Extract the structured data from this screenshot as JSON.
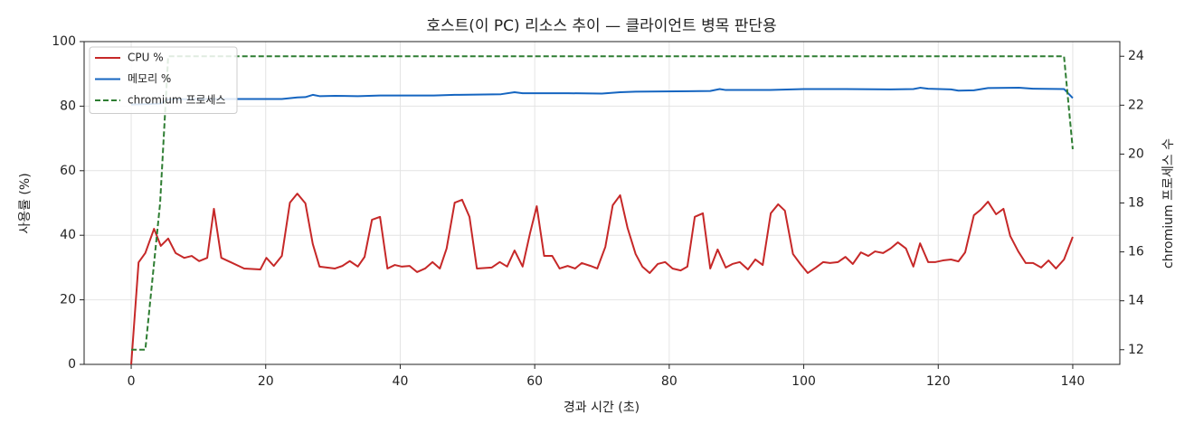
{
  "chart_data": {
    "type": "line",
    "title": "호스트(이 PC) 리소스 추이 — 클라이언트 병목 판단용",
    "xlabel": "경과 시간 (초)",
    "ylabel": "사용률 (%)",
    "y2label": "chromium 프로세스 수",
    "xlim": [
      -7,
      147
    ],
    "xticks": [
      0,
      20,
      40,
      60,
      80,
      100,
      120,
      140
    ],
    "ylim": [
      0,
      100
    ],
    "yticks": [
      0,
      20,
      40,
      60,
      80,
      100
    ],
    "y2lim": [
      11.4,
      24.6
    ],
    "y2ticks": [
      12,
      14,
      16,
      18,
      20,
      22,
      24
    ],
    "grid": true,
    "legend": "upper left",
    "series": [
      {
        "name": "CPU %",
        "color": "#c62828",
        "dashed": false,
        "x": [
          0,
          1.1,
          2.1,
          3.4,
          4.4,
          5.5,
          6.6,
          7.9,
          9.0,
          10.1,
          11.3,
          12.3,
          13.4,
          16.8,
          19.2,
          20.1,
          21.2,
          22.4,
          23.6,
          24.7,
          25.9,
          27,
          28,
          30.3,
          31.4,
          32.5,
          33.7,
          34.7,
          35.8,
          37,
          38.1,
          39.2,
          40.2,
          41.4,
          42.5,
          43.7,
          44.8,
          45.9,
          46.9,
          48.1,
          49.2,
          50.3,
          51.4,
          53.6,
          54.8,
          55.9,
          57,
          58.2,
          59.3,
          60.3,
          61.4,
          62.6,
          63.7,
          64.9,
          66,
          67,
          68.3,
          69.3,
          70.5,
          71.6,
          72.7,
          73.8,
          75,
          76,
          77.1,
          78.3,
          79.4,
          80.5,
          81.7,
          82.7,
          83.8,
          85,
          86.1,
          87.2,
          88.4,
          89.4,
          90.5,
          91.7,
          92.8,
          93.9,
          95.1,
          96.2,
          97.2,
          98.4,
          99.5,
          100.6,
          101.8,
          102.9,
          103.9,
          105.1,
          106.2,
          107.3,
          108.5,
          109.6,
          110.6,
          111.8,
          112.9,
          114,
          115.2,
          116.3,
          117.3,
          118.5,
          119.6,
          120.7,
          121.9,
          123,
          124,
          125.3,
          126.3,
          127.4,
          128.6,
          129.7,
          130.7,
          131.9,
          133,
          134.1,
          135.3,
          136.4,
          137.5,
          138.7,
          140
        ],
        "values": [
          0,
          31.6,
          34.5,
          42,
          36.7,
          39,
          34.5,
          33,
          33.6,
          32,
          33,
          48.2,
          33,
          29.7,
          29.4,
          33,
          30.5,
          33.6,
          50.1,
          52.9,
          49.9,
          37.3,
          30.3,
          29.7,
          30.5,
          32,
          30.3,
          33.3,
          44.8,
          45.7,
          29.7,
          30.8,
          30.3,
          30.5,
          28.6,
          29.7,
          31.7,
          29.7,
          35.9,
          50.1,
          51,
          45.7,
          29.7,
          30,
          31.7,
          30.3,
          35.3,
          30.3,
          40.6,
          49,
          33.6,
          33.6,
          29.7,
          30.5,
          29.7,
          31.4,
          30.5,
          29.7,
          36.4,
          49.3,
          52.4,
          42.3,
          34.2,
          30.3,
          28.3,
          31.1,
          31.7,
          29.7,
          29.1,
          30.3,
          45.7,
          46.8,
          29.7,
          35.6,
          30,
          31.1,
          31.7,
          29.4,
          32.5,
          30.8,
          46.8,
          49.6,
          47.6,
          34.2,
          31.1,
          28.3,
          30,
          31.7,
          31.4,
          31.7,
          33.3,
          31.1,
          34.7,
          33.6,
          35,
          34.5,
          35.9,
          37.8,
          35.9,
          30.3,
          37.5,
          31.7,
          31.7,
          32.2,
          32.5,
          31.9,
          34.7,
          46.2,
          47.9,
          50.4,
          46.5,
          48.2,
          39.8,
          35,
          31.4,
          31.4,
          30,
          32.2,
          29.7,
          32.5,
          39.5
        ]
      },
      {
        "name": "메모리 %",
        "color": "#1565c0",
        "dashed": false,
        "x": [
          0,
          4.4,
          5.5,
          10,
          15,
          20,
          22.4,
          24.7,
          25.9,
          27,
          28,
          30.3,
          33.7,
          37,
          45,
          48.1,
          55,
          57,
          58.2,
          65,
          70,
          72.7,
          75,
          86.1,
          87.5,
          88.4,
          95,
          100,
          106.2,
          112.9,
          116.3,
          117.3,
          118.5,
          121.9,
          123,
          125.3,
          127.4,
          132,
          134.1,
          138.7,
          140
        ],
        "values": [
          80.5,
          80.8,
          82.1,
          82.2,
          82.2,
          82.2,
          82.2,
          82.7,
          82.8,
          83.5,
          83.1,
          83.2,
          83.1,
          83.3,
          83.3,
          83.5,
          83.7,
          84.3,
          84,
          84,
          83.9,
          84.3,
          84.5,
          84.7,
          85.3,
          85,
          85,
          85.3,
          85.3,
          85.2,
          85.3,
          85.7,
          85.4,
          85.2,
          84.8,
          84.9,
          85.6,
          85.7,
          85.4,
          85.3,
          82.5
        ]
      },
      {
        "name": "chromium 프로세스",
        "color": "#2e7d32",
        "dashed": true,
        "axis": "y2",
        "x": [
          0,
          2.1,
          4.3,
          5.5,
          138.7,
          140
        ],
        "values": [
          12,
          12,
          18,
          24,
          24,
          20.2
        ]
      }
    ]
  }
}
